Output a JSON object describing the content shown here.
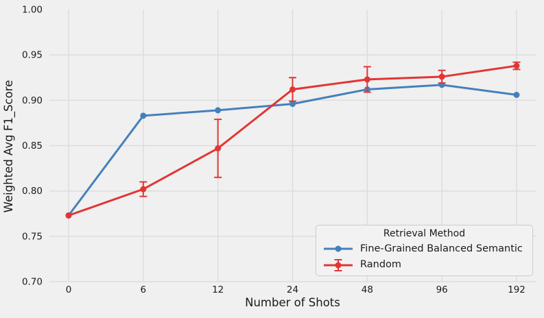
{
  "figure": {
    "colors": {
      "background": "#F0F0F0",
      "grid": "#DCDCDC",
      "text": "#1A1A1A",
      "legend_bg": "#F2F2F2",
      "legend_border": "#CBCBCB"
    }
  },
  "chart_data": {
    "type": "line",
    "title": "",
    "xlabel": "Number of Shots",
    "ylabel": "Weighted Avg F1_Score",
    "categories": [
      "0",
      "6",
      "12",
      "24",
      "48",
      "96",
      "192"
    ],
    "y_tick_labels": [
      "1.00",
      "0.95",
      "0.90",
      "0.85",
      "0.80",
      "0.75",
      "0.70"
    ],
    "y_ticks": [
      1.0,
      0.95,
      0.9,
      0.85,
      0.8,
      0.75,
      0.7
    ],
    "ylim": [
      0.7,
      1.0
    ],
    "grid": true,
    "legend": {
      "title": "Retrieval Method",
      "position": "lower right"
    },
    "series": [
      {
        "name": "Fine-Grained Balanced Semantic",
        "color": "#4580BC",
        "marker": "circle",
        "values": [
          0.773,
          0.883,
          0.889,
          0.896,
          0.912,
          0.917,
          0.906
        ],
        "yerr": null
      },
      {
        "name": "Random",
        "color": "#E23535",
        "marker": "circle-with-errorbars",
        "values": [
          0.773,
          0.802,
          0.847,
          0.912,
          0.923,
          0.926,
          0.938
        ],
        "yerr": [
          0,
          0.008,
          0.032,
          0.013,
          0.014,
          0.007,
          0.004
        ]
      }
    ]
  }
}
